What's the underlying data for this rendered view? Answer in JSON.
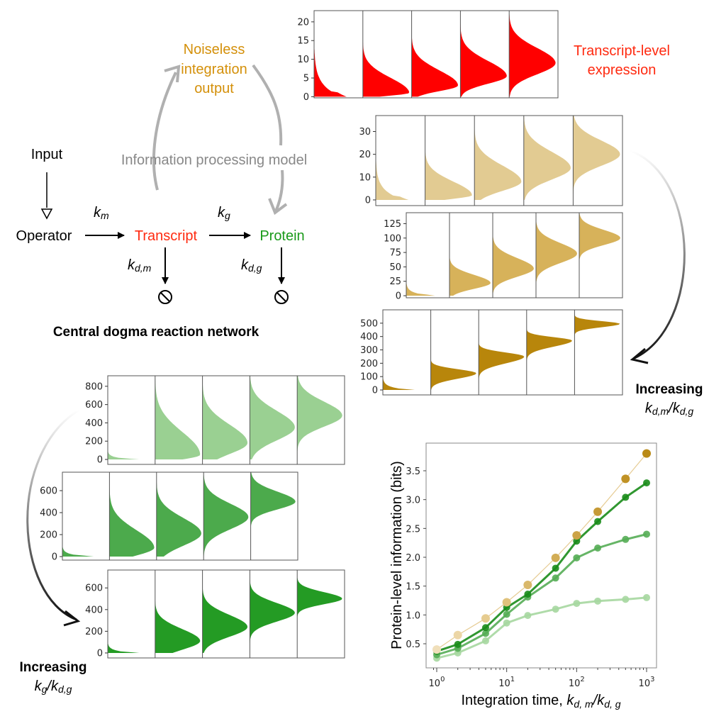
{
  "diagram": {
    "input": "Input",
    "operator": "Operator",
    "transcript": "Transcript",
    "protein": "Protein",
    "k_m": {
      "base": "k",
      "sub": "m"
    },
    "k_g": {
      "base": "k",
      "sub": "g"
    },
    "k_dm": {
      "base": "k",
      "sub": "d,m"
    },
    "k_dg": {
      "base": "k",
      "sub": "d,g"
    },
    "noiseless": [
      "Noiseless",
      "integration",
      "output"
    ],
    "model": "Information processing model",
    "title": "Central dogma reaction network",
    "colors": {
      "transcript": "#ff2a10",
      "protein": "#1a9a1a",
      "noiseless": "#d4900a",
      "model": "#8a8a8a"
    }
  },
  "labels": {
    "transcript_level": [
      "Transcript-level",
      "expression"
    ],
    "increasing_m": {
      "word": "Increasing",
      "a": "k",
      "a_sub": "d,m",
      "sep": "/",
      "b": "k",
      "b_sub": "d,g"
    },
    "increasing_g": {
      "word": "Increasing",
      "a": "k",
      "a_sub": "g",
      "sep": "/",
      "b": "k",
      "b_sub": "d,g"
    }
  },
  "violin_panels": [
    {
      "id": "transcript",
      "color": "#ff0000",
      "ticks": [
        0,
        5,
        10,
        15,
        20
      ],
      "ylim": [
        -0.3,
        23
      ],
      "modes": [
        [
          0.8,
          0.5,
          3
        ],
        [
          1,
          0.7,
          4
        ],
        [
          3,
          1.5,
          4
        ],
        [
          5.5,
          2,
          4
        ],
        [
          9,
          3,
          4
        ]
      ]
    },
    {
      "id": "noiseless-1",
      "color": "#e2cb92",
      "ticks": [
        0,
        10,
        20,
        30
      ],
      "ylim": [
        -2.5,
        37
      ],
      "modes": [
        [
          1,
          0.6,
          4
        ],
        [
          2,
          1.5,
          6
        ],
        [
          8,
          4,
          7
        ],
        [
          14,
          5,
          7
        ],
        [
          20,
          5,
          6
        ]
      ]
    },
    {
      "id": "noiseless-2",
      "color": "#d7b25a",
      "ticks": [
        0,
        25,
        50,
        75,
        100,
        125
      ],
      "ylim": [
        -3.6,
        144
      ],
      "modes": [
        [
          1,
          1,
          5
        ],
        [
          22,
          10,
          14
        ],
        [
          47,
          14,
          18
        ],
        [
          73,
          16,
          18
        ],
        [
          100,
          12,
          14
        ]
      ]
    },
    {
      "id": "noiseless-3",
      "color": "#b8860b",
      "ticks": [
        0,
        100,
        200,
        300,
        400,
        500
      ],
      "ylim": [
        -37,
        600
      ],
      "modes": [
        [
          5,
          5,
          20
        ],
        [
          125,
          40,
          30
        ],
        [
          250,
          50,
          30
        ],
        [
          370,
          45,
          25
        ],
        [
          495,
          25,
          20
        ]
      ]
    },
    {
      "id": "protein-1",
      "color": "#9ad092",
      "ticks": [
        0,
        200,
        400,
        600,
        800
      ],
      "ylim": [
        -54,
        915
      ],
      "modes": [
        [
          5,
          5,
          20
        ],
        [
          50,
          50,
          250
        ],
        [
          180,
          120,
          200
        ],
        [
          350,
          140,
          180
        ],
        [
          480,
          120,
          150
        ]
      ]
    },
    {
      "id": "protein-2",
      "color": "#4caa4c",
      "ticks": [
        0,
        200,
        400,
        600
      ],
      "ylim": [
        -32,
        768
      ],
      "modes": [
        [
          5,
          5,
          20
        ],
        [
          80,
          70,
          160
        ],
        [
          210,
          110,
          140
        ],
        [
          360,
          110,
          120
        ],
        [
          500,
          70,
          90
        ]
      ]
    },
    {
      "id": "protein-3",
      "color": "#249b24",
      "ticks": [
        0,
        200,
        400,
        600
      ],
      "ylim": [
        -46,
        765
      ],
      "modes": [
        [
          5,
          5,
          20
        ],
        [
          110,
          80,
          110
        ],
        [
          240,
          90,
          110
        ],
        [
          370,
          80,
          90
        ],
        [
          500,
          50,
          60
        ]
      ]
    }
  ],
  "chart_data": {
    "type": "line",
    "xlabel": {
      "text": "Integration time, ",
      "a": "k",
      "a_sub": "d, m",
      "sep": "/",
      "b": "k",
      "b_sub": "d, g"
    },
    "ylabel": "Protein-level information (bits)",
    "xscale": "log",
    "xlim": [
      0.85,
      1200
    ],
    "ylim": [
      0.18,
      3.9
    ],
    "xticks": [
      {
        "v": 1,
        "base": "10",
        "exp": "0"
      },
      {
        "v": 10,
        "base": "10",
        "exp": "1"
      },
      {
        "v": 100,
        "base": "10",
        "exp": "2"
      },
      {
        "v": 1000,
        "base": "10",
        "exp": "3"
      }
    ],
    "yticks": [
      "0.5",
      "1.0",
      "1.5",
      "2.0",
      "2.5",
      "3.0",
      "3.5"
    ],
    "x": [
      1,
      2,
      5,
      10,
      20,
      50,
      100,
      200,
      500,
      1000
    ],
    "series": [
      {
        "name": "noiseless",
        "color": "#e6cc94",
        "point_colors": [
          "#f0dfba",
          "#ecd6a6",
          "#e6cc90",
          "#e0c27c",
          "#d9b86a",
          "#d2ad56",
          "#cca347",
          "#c69a35",
          "#c09225",
          "#ba8a15"
        ],
        "values": [
          0.4,
          0.65,
          0.94,
          1.22,
          1.52,
          1.99,
          2.38,
          2.79,
          3.36,
          3.8
        ]
      },
      {
        "name": "protein-high",
        "color": "#1a8c1a",
        "values": [
          0.37,
          0.49,
          0.78,
          1.13,
          1.36,
          1.81,
          2.28,
          2.62,
          3.04,
          3.29
        ]
      },
      {
        "name": "protein-mid",
        "color": "#55ad55",
        "values": [
          0.31,
          0.42,
          0.68,
          1.01,
          1.31,
          1.64,
          1.99,
          2.16,
          2.31,
          2.4
        ]
      },
      {
        "name": "protein-low",
        "color": "#a6d7a0",
        "values": [
          0.25,
          0.34,
          0.55,
          0.86,
          0.99,
          1.1,
          1.2,
          1.24,
          1.27,
          1.3
        ]
      }
    ]
  }
}
